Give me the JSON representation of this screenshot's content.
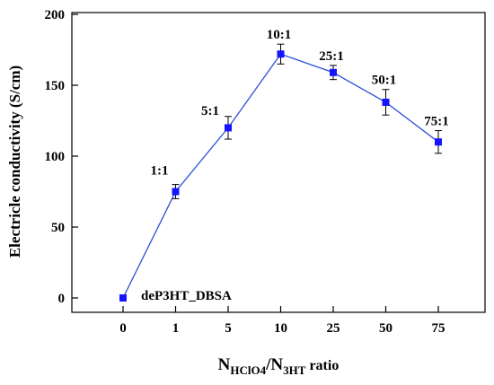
{
  "chart_data": {
    "type": "line",
    "categories": [
      "0",
      "1",
      "5",
      "10",
      "25",
      "50",
      "75"
    ],
    "series": [
      {
        "values": [
          0,
          75,
          120,
          172,
          159,
          138,
          110
        ],
        "errors": [
          2,
          5,
          8,
          7,
          5,
          9,
          8
        ],
        "labels": [
          "deP3HT_DBSA",
          "1:1",
          "5:1",
          "10:1",
          "25:1",
          "50:1",
          "75:1"
        ]
      }
    ],
    "ylabel": "Electricle conductivity (S/cm)",
    "xlabel": {
      "base": "N",
      "subscript": "HClO4",
      "middle": "/N",
      "subscript2": "3HT",
      "suffix": " ratio"
    },
    "ylim": [
      0,
      200
    ],
    "yticks": [
      0,
      50,
      100,
      150,
      200
    ],
    "grid": false,
    "color": "#1414ff",
    "line_color": "#2b4fd8"
  }
}
